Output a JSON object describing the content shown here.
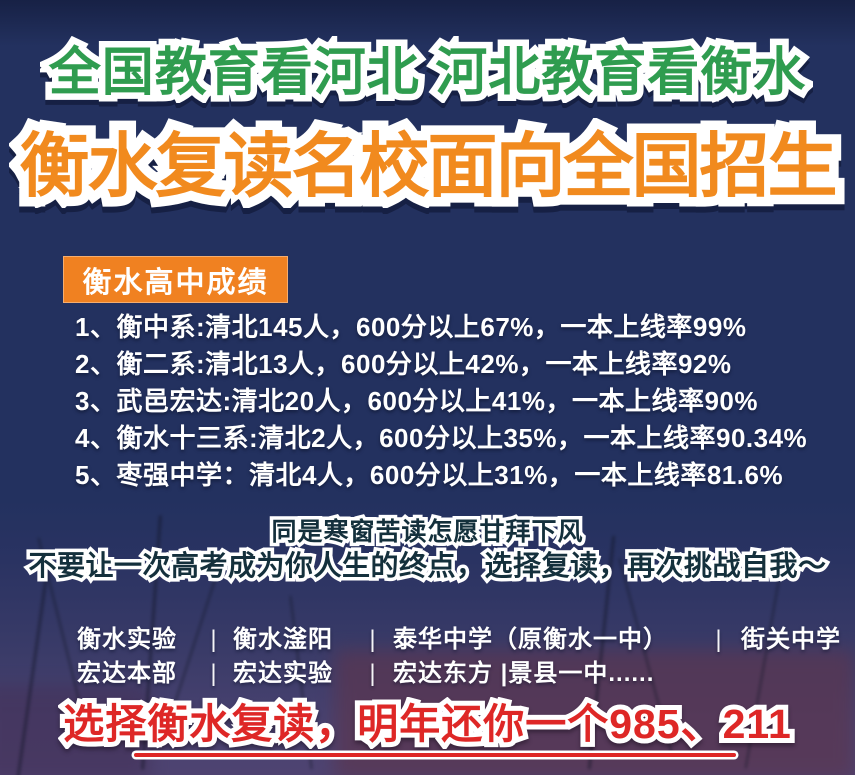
{
  "poster": {
    "bg_color": "#23315f",
    "green_accent": "#2f9c4f",
    "orange_accent": "#f18a1e",
    "badge_orange": "#f08121",
    "red_accent": "#de2726"
  },
  "headlines": {
    "top": "全国教育看河北 河北教育看衡水",
    "main": "衡水复读名校面向全国招生"
  },
  "results": {
    "badge": "衡水高中成绩",
    "items": [
      "1、衡中系:清北145人，600分以上67%，一本上线率99%",
      "2、衡二系:清北13人，600分以上42%，一本上线率92%",
      "3、武邑宏达:清北20人，600分以上41%，一本上线率90%",
      "4、衡水十三系:清北2人，600分以上35%，一本上线率90.34%",
      "5、枣强中学：清北4人，600分以上31%，一本上线率81.6%"
    ]
  },
  "motto": {
    "line1": "同是寒窗苦读怎愿甘拜下风",
    "line2": "不要让一次高考成为你人生的终点，选择复读，再次挑战自我～"
  },
  "schools": {
    "separator": "|",
    "row1": [
      "衡水实验",
      "衡水滏阳",
      "泰华中学（原衡水一中）",
      "街关中学"
    ],
    "row2": [
      "宏达本部",
      "宏达实验",
      "宏达东方 |景县一中......"
    ]
  },
  "footer": {
    "slogan": "选择衡水复读，明年还你一个985、211"
  }
}
